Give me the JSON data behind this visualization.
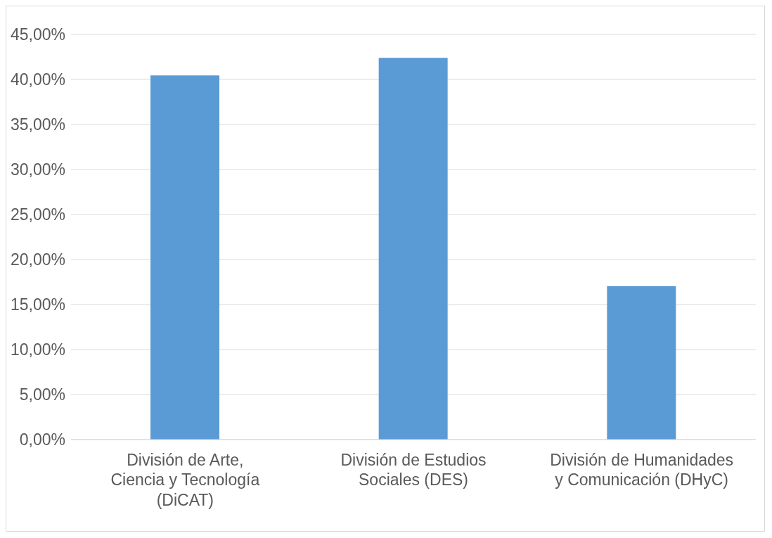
{
  "chart_data": {
    "type": "bar",
    "categories": [
      "División de Arte, Ciencia y Tecnología (DiCAT)",
      "División de Estudios Sociales (DES)",
      "División de Humanidades y Comunicación (DHyC)"
    ],
    "values": [
      40.45,
      42.41,
      17.04
    ],
    "color": "#5b9bd5",
    "ylim": [
      0,
      45
    ],
    "yticks": [
      {
        "value": 0,
        "label": "0,00%"
      },
      {
        "value": 5,
        "label": "5,00%"
      },
      {
        "value": 10,
        "label": "10,00%"
      },
      {
        "value": 15,
        "label": "15,00%"
      },
      {
        "value": 20,
        "label": "20,00%"
      },
      {
        "value": 25,
        "label": "25,00%"
      },
      {
        "value": 30,
        "label": "30,00%"
      },
      {
        "value": 35,
        "label": "35,00%"
      },
      {
        "value": 40,
        "label": "40,00%"
      },
      {
        "value": 45,
        "label": "45,00%"
      }
    ],
    "grid": "y"
  }
}
